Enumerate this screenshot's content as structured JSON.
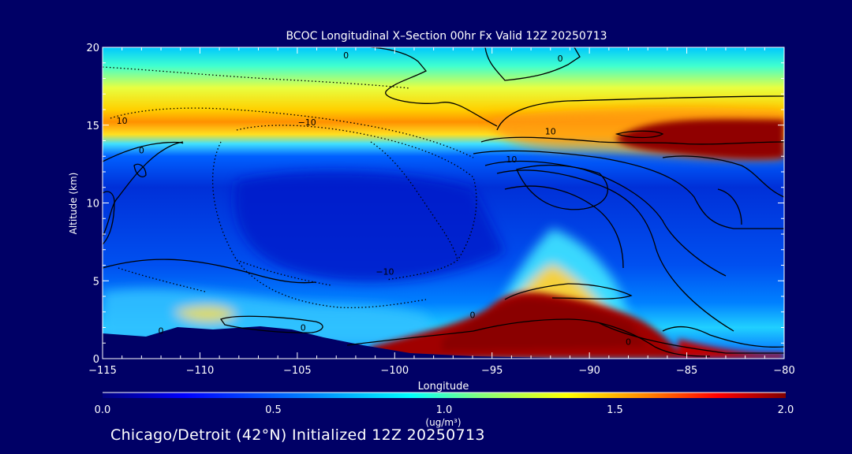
{
  "chart_data": {
    "type": "heatmap",
    "title": "BCOC Longitudinal X–Section 00hr  Fx Valid 12Z 20250713",
    "xlabel": "Longitude",
    "ylabel": "Altitude (km)",
    "xlim": [
      -115,
      -80
    ],
    "ylim": [
      0,
      20
    ],
    "x_ticks": [
      -115,
      -110,
      -105,
      -100,
      -95,
      -90,
      -85,
      -80
    ],
    "x_tick_labels": [
      "−115",
      "−110",
      "−105",
      "−100",
      "−95",
      "−90",
      "−85",
      "−80"
    ],
    "y_ticks": [
      0,
      5,
      10,
      15,
      20
    ],
    "y_tick_labels": [
      "0",
      "5",
      "10",
      "15",
      "20"
    ],
    "colorbar": {
      "range": [
        0.0,
        2.0
      ],
      "ticks": [
        0.0,
        0.5,
        1.0,
        1.5,
        2.0
      ],
      "tick_labels": [
        "0.0",
        "0.5",
        "1.0",
        "1.5",
        "2.0"
      ],
      "label": "(ug/m³)",
      "colormap": [
        "#000080",
        "#0000ff",
        "#0080ff",
        "#00ffff",
        "#80ff80",
        "#ffff00",
        "#ff8000",
        "#ff0000",
        "#800000"
      ]
    },
    "contour_labels": [
      {
        "text": "0",
        "lon": -102.5,
        "alt": 19.5
      },
      {
        "text": "0",
        "lon": -91.5,
        "alt": 19.3
      },
      {
        "text": "10",
        "lon": -114.0,
        "alt": 15.3
      },
      {
        "text": "0",
        "lon": -113.0,
        "alt": 13.4
      },
      {
        "text": "−10",
        "lon": -104.5,
        "alt": 15.2
      },
      {
        "text": "10",
        "lon": -92.0,
        "alt": 14.6
      },
      {
        "text": "10",
        "lon": -94.0,
        "alt": 12.8
      },
      {
        "text": "−10",
        "lon": -100.5,
        "alt": 5.6
      },
      {
        "text": "0",
        "lon": -112.0,
        "alt": 1.8
      },
      {
        "text": "0",
        "lon": -104.7,
        "alt": 2.0
      },
      {
        "text": "0",
        "lon": -96.0,
        "alt": 2.8
      },
      {
        "text": "0",
        "lon": -88.0,
        "alt": 1.1
      }
    ]
  },
  "footer": {
    "text": "Chicago/Detroit (42°N) Initialized 12Z 20250713"
  }
}
